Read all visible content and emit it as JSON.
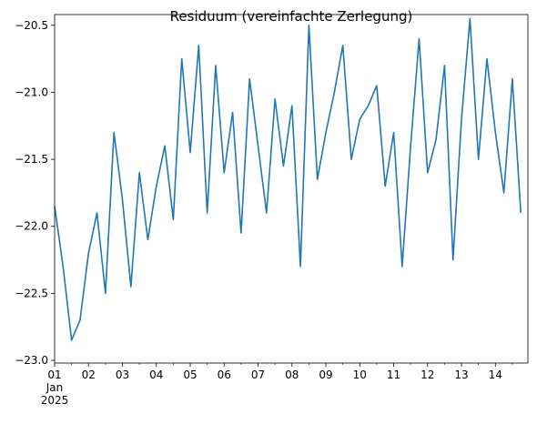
{
  "chart_data": {
    "type": "line",
    "title": "Residuum (vereinfachte Zerlegung)",
    "xlabel": "",
    "ylabel": "",
    "x_range": [
      "2025-01-01T00:00",
      "2025-01-14T23:00"
    ],
    "ylim": [
      -23.02,
      -20.42
    ],
    "y_ticks": [
      -23.0,
      -22.5,
      -22.0,
      -21.5,
      -21.0,
      -20.5
    ],
    "y_tick_labels": [
      "−23.0",
      "−22.5",
      "−22.0",
      "−21.5",
      "−21.0",
      "−20.5"
    ],
    "x_ticks": [
      {
        "date": "2025-01-01",
        "label": "01",
        "sub1": "Jan",
        "sub2": "2025"
      },
      {
        "date": "2025-01-02",
        "label": "02"
      },
      {
        "date": "2025-01-03",
        "label": "03"
      },
      {
        "date": "2025-01-04",
        "label": "04"
      },
      {
        "date": "2025-01-05",
        "label": "05"
      },
      {
        "date": "2025-01-06",
        "label": "06"
      },
      {
        "date": "2025-01-07",
        "label": "07"
      },
      {
        "date": "2025-01-08",
        "label": "08"
      },
      {
        "date": "2025-01-09",
        "label": "09"
      },
      {
        "date": "2025-01-10",
        "label": "10"
      },
      {
        "date": "2025-01-11",
        "label": "11"
      },
      {
        "date": "2025-01-12",
        "label": "12"
      },
      {
        "date": "2025-01-13",
        "label": "13"
      },
      {
        "date": "2025-01-14",
        "label": "14"
      }
    ],
    "grid": false,
    "line_color": "#1f77b4",
    "series": [
      {
        "name": "",
        "x": [
          "2025-01-01T00:00",
          "2025-01-01T06:00",
          "2025-01-01T12:00",
          "2025-01-01T18:00",
          "2025-01-02T00:00",
          "2025-01-02T06:00",
          "2025-01-02T12:00",
          "2025-01-02T18:00",
          "2025-01-03T00:00",
          "2025-01-03T06:00",
          "2025-01-03T12:00",
          "2025-01-03T18:00",
          "2025-01-04T00:00",
          "2025-01-04T06:00",
          "2025-01-04T12:00",
          "2025-01-04T18:00",
          "2025-01-05T00:00",
          "2025-01-05T06:00",
          "2025-01-05T12:00",
          "2025-01-05T18:00",
          "2025-01-06T00:00",
          "2025-01-06T06:00",
          "2025-01-06T12:00",
          "2025-01-06T18:00",
          "2025-01-07T00:00",
          "2025-01-07T06:00",
          "2025-01-07T12:00",
          "2025-01-07T18:00",
          "2025-01-08T00:00",
          "2025-01-08T06:00",
          "2025-01-08T12:00",
          "2025-01-08T18:00",
          "2025-01-09T00:00",
          "2025-01-09T06:00",
          "2025-01-09T12:00",
          "2025-01-09T18:00",
          "2025-01-10T00:00",
          "2025-01-10T06:00",
          "2025-01-10T12:00",
          "2025-01-10T18:00",
          "2025-01-11T00:00",
          "2025-01-11T06:00",
          "2025-01-11T12:00",
          "2025-01-11T18:00",
          "2025-01-12T00:00",
          "2025-01-12T06:00",
          "2025-01-12T12:00",
          "2025-01-12T18:00",
          "2025-01-13T00:00",
          "2025-01-13T06:00",
          "2025-01-13T12:00",
          "2025-01-13T18:00",
          "2025-01-14T00:00",
          "2025-01-14T06:00",
          "2025-01-14T12:00",
          "2025-01-14T18:00"
        ],
        "values": [
          -21.85,
          -22.3,
          -22.85,
          -22.7,
          -22.2,
          -21.9,
          -22.5,
          -21.3,
          -21.8,
          -22.45,
          -21.6,
          -22.1,
          -21.7,
          -21.4,
          -21.95,
          -20.75,
          -21.45,
          -20.65,
          -21.9,
          -20.8,
          -21.6,
          -21.15,
          -22.05,
          -20.9,
          -21.4,
          -21.9,
          -21.05,
          -21.55,
          -21.1,
          -22.3,
          -20.5,
          -21.65,
          -21.3,
          -21.0,
          -20.65,
          -21.5,
          -21.2,
          -21.1,
          -20.95,
          -21.7,
          -21.3,
          -22.3,
          -21.4,
          -20.6,
          -21.6,
          -21.35,
          -20.8,
          -22.25,
          -21.2,
          -20.45,
          -21.5,
          -20.75,
          -21.3,
          -21.75,
          -20.9,
          -21.9
        ]
      }
    ]
  }
}
